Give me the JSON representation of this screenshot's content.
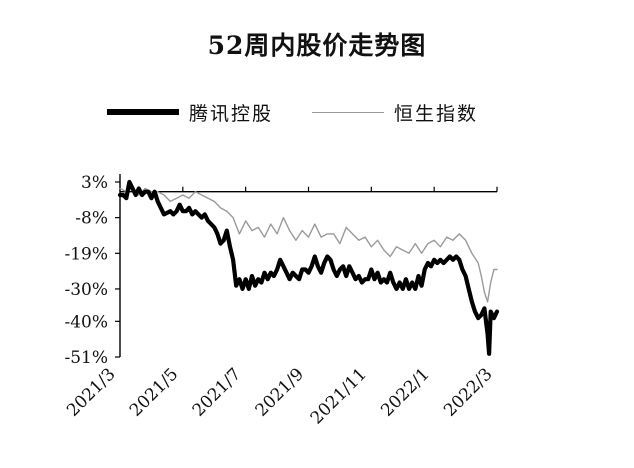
{
  "chart_data": {
    "type": "line",
    "title": "52周内股价走势图",
    "xlabel": "",
    "ylabel": "",
    "x_ticks": [
      "2021/3",
      "2021/5",
      "2021/7",
      "2021/9",
      "2021/11",
      "2022/1",
      "2022/3"
    ],
    "y_ticks": [
      "3%",
      "-8%",
      "-19%",
      "-30%",
      "-40%",
      "-51%"
    ],
    "y_tick_values": [
      3,
      -8,
      -19,
      -30,
      -40,
      -51
    ],
    "ylim": [
      -51,
      3
    ],
    "xlim": [
      0,
      12
    ],
    "grid": false,
    "legend_position": "top",
    "series": [
      {
        "name": "腾讯控股",
        "color": "#000000",
        "style": "thick",
        "x": [
          0,
          0.1,
          0.2,
          0.3,
          0.4,
          0.5,
          0.6,
          0.7,
          0.8,
          0.9,
          1.0,
          1.1,
          1.2,
          1.4,
          1.6,
          1.7,
          1.8,
          1.9,
          2.0,
          2.1,
          2.2,
          2.3,
          2.4,
          2.5,
          2.6,
          2.7,
          2.8,
          2.9,
          3.0,
          3.1,
          3.2,
          3.3,
          3.4,
          3.5,
          3.6,
          3.7,
          3.8,
          3.9,
          4.0,
          4.1,
          4.2,
          4.3,
          4.4,
          4.5,
          4.6,
          4.7,
          4.8,
          4.9,
          5.0,
          5.1,
          5.2,
          5.3,
          5.4,
          5.5,
          5.6,
          5.7,
          5.8,
          5.9,
          6.0,
          6.1,
          6.2,
          6.3,
          6.4,
          6.5,
          6.6,
          6.7,
          6.8,
          6.9,
          7.0,
          7.1,
          7.2,
          7.3,
          7.4,
          7.5,
          7.6,
          7.7,
          7.8,
          7.9,
          8.0,
          8.1,
          8.2,
          8.3,
          8.4,
          8.5,
          8.6,
          8.7,
          8.8,
          8.9,
          9.0,
          9.1,
          9.2,
          9.3,
          9.4,
          9.5,
          9.6,
          9.7,
          9.8,
          9.9,
          10.0,
          10.1,
          10.2,
          10.3,
          10.4,
          10.5,
          10.6,
          10.7,
          10.8,
          10.9,
          11.0,
          11.1,
          11.2,
          11.3,
          11.4,
          11.5,
          11.6,
          11.65,
          11.7,
          11.75,
          11.8,
          11.9,
          12.0
        ],
        "values": [
          -1,
          -1,
          -2,
          3,
          1,
          -1,
          1,
          -1,
          0,
          0,
          -2,
          0,
          -3,
          -7,
          -6,
          -7,
          -6,
          -4,
          -6,
          -6,
          -5,
          -7,
          -6,
          -7,
          -8,
          -7,
          -9,
          -10,
          -11,
          -13,
          -16,
          -15,
          -12,
          -17,
          -21,
          -29,
          -27,
          -30,
          -27,
          -30,
          -26,
          -29,
          -27,
          -28,
          -25,
          -27,
          -25,
          -26,
          -24,
          -21,
          -23,
          -25,
          -27,
          -25,
          -26,
          -27,
          -24,
          -24,
          -25,
          -23,
          -20,
          -23,
          -25,
          -22,
          -20,
          -21,
          -24,
          -26,
          -24,
          -23,
          -26,
          -23,
          -25,
          -27,
          -26,
          -28,
          -27,
          -27,
          -24,
          -27,
          -25,
          -28,
          -27,
          -28,
          -25,
          -28,
          -30,
          -28,
          -30,
          -27,
          -30,
          -28,
          -30,
          -26,
          -29,
          -24,
          -22,
          -23,
          -21,
          -22,
          -21,
          -22,
          -21,
          -20,
          -21,
          -20,
          -21,
          -24,
          -26,
          -30,
          -34,
          -37,
          -39,
          -38,
          -36,
          -40,
          -44,
          -50,
          -37,
          -39,
          -37
        ]
      },
      {
        "name": "恒生指数",
        "color": "#9a9a9a",
        "style": "thin",
        "x": [
          0,
          0.2,
          0.4,
          0.6,
          0.8,
          1.0,
          1.2,
          1.4,
          1.6,
          1.8,
          2.0,
          2.2,
          2.4,
          2.6,
          2.8,
          3.0,
          3.2,
          3.4,
          3.6,
          3.8,
          4.0,
          4.2,
          4.4,
          4.6,
          4.8,
          5.0,
          5.2,
          5.4,
          5.6,
          5.8,
          6.0,
          6.2,
          6.4,
          6.6,
          6.8,
          7.0,
          7.2,
          7.4,
          7.6,
          7.8,
          8.0,
          8.2,
          8.4,
          8.6,
          8.8,
          9.0,
          9.2,
          9.4,
          9.6,
          9.8,
          10.0,
          10.2,
          10.4,
          10.6,
          10.8,
          11.0,
          11.2,
          11.4,
          11.5,
          11.6,
          11.7,
          11.8,
          11.9,
          12.0
        ],
        "values": [
          1,
          0,
          1,
          -1,
          1,
          0,
          0,
          -1,
          -3,
          -2,
          -1,
          -2,
          0,
          -1,
          -2,
          -3,
          -5,
          -6,
          -8,
          -13,
          -9,
          -12,
          -11,
          -14,
          -10,
          -13,
          -8,
          -12,
          -15,
          -12,
          -14,
          -10,
          -14,
          -13,
          -13,
          -16,
          -11,
          -13,
          -15,
          -14,
          -17,
          -15,
          -18,
          -20,
          -17,
          -18,
          -19,
          -16,
          -19,
          -16,
          -15,
          -17,
          -14,
          -15,
          -13,
          -15,
          -19,
          -22,
          -26,
          -31,
          -34,
          -28,
          -24,
          -24
        ]
      }
    ]
  }
}
